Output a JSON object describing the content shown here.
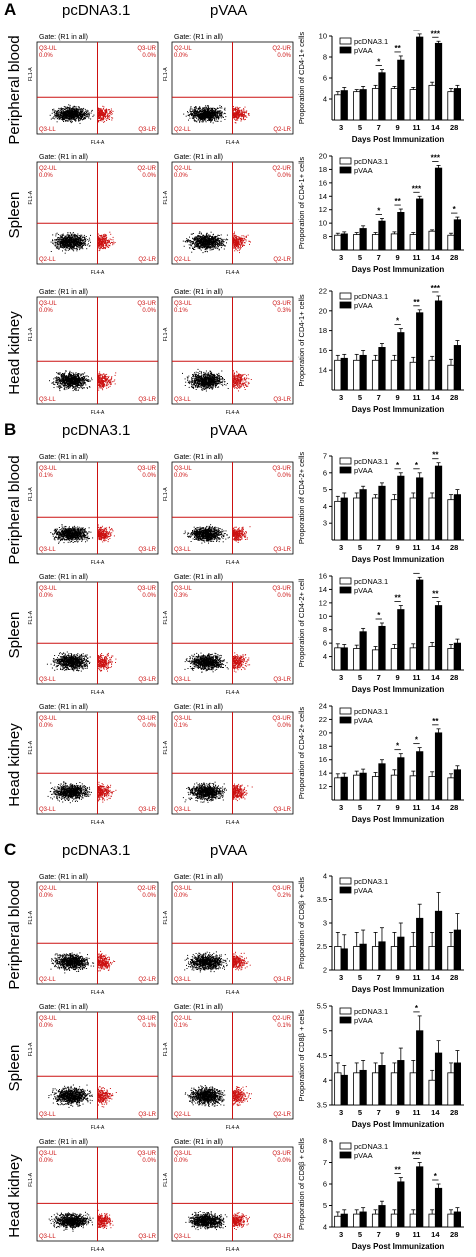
{
  "colors": {
    "gate_red": "#cc1111",
    "dots_black": "#000000",
    "bar_ctrl": "#ffffff",
    "bar_vaa": "#000000"
  },
  "panels": [
    {
      "label": "A",
      "headers": [
        "pcDNA3.1",
        "pVAA"
      ],
      "rows": [
        {
          "tissue": "Peripheral blood",
          "quads": [
            [
              "Q3-UL",
              "Q3-UR",
              "Q3-LL",
              "Q3-LR"
            ],
            [
              "Q2-UL",
              "Q2-UR",
              "Q2-LL",
              "Q2-LR"
            ]
          ],
          "ul_vals": [
            [
              "0.0%",
              "0.0%"
            ],
            [
              "0.0%",
              "0.0%"
            ]
          ]
        },
        {
          "tissue": "Spleen",
          "quads": [
            [
              "Q2-UL",
              "Q2-UR",
              "Q2-LL",
              "Q2-LR"
            ],
            [
              "Q2-UL",
              "Q2-UR",
              "Q2-LL",
              "Q2-LR"
            ]
          ],
          "ul_vals": [
            [
              "0.0%",
              "0.0%"
            ],
            [
              "0.0%",
              "0.0%"
            ]
          ]
        },
        {
          "tissue": "Head kidney",
          "quads": [
            [
              "Q3-UL",
              "Q3-UR",
              "Q3-LL",
              "Q3-LR"
            ],
            [
              "Q3-UL",
              "Q3-UR",
              "Q3-LL",
              "Q3-LR"
            ]
          ],
          "ul_vals": [
            [
              "0.0%",
              "0.0%"
            ],
            [
              "0.1%",
              "0.3%"
            ]
          ]
        }
      ]
    },
    {
      "label": "B",
      "headers": [
        "pcDNA3.1",
        "pVAA"
      ],
      "rows": [
        {
          "tissue": "Peripheral blood",
          "quads": [
            [
              "Q3-UL",
              "Q3-UR",
              "Q3-LL",
              "Q3-LR"
            ],
            [
              "Q3-UL",
              "Q3-UR",
              "Q3-LL",
              "Q3-LR"
            ]
          ],
          "ul_vals": [
            [
              "0.1%",
              "0.0%"
            ],
            [
              "0.0%",
              "0.0%"
            ]
          ]
        },
        {
          "tissue": "Spleen",
          "quads": [
            [
              "Q3-UL",
              "Q3-UR",
              "Q3-LL",
              "Q3-LR"
            ],
            [
              "Q3-UL",
              "Q3-UR",
              "Q3-LL",
              "Q3-LR"
            ]
          ],
          "ul_vals": [
            [
              "0.0%",
              "0.0%"
            ],
            [
              "0.3%",
              "0.0%"
            ]
          ]
        },
        {
          "tissue": "Head kidney",
          "quads": [
            [
              "Q3-UL",
              "Q3-UR",
              "Q3-LL",
              "Q3-LR"
            ],
            [
              "Q3-UL",
              "Q3-UR",
              "Q3-LL",
              "Q3-LR"
            ]
          ],
          "ul_vals": [
            [
              "0.0%",
              "0.0%"
            ],
            [
              "0.1%",
              "0.0%"
            ]
          ]
        }
      ]
    },
    {
      "label": "C",
      "headers": [
        "pcDNA3.1",
        "pVAA"
      ],
      "rows": [
        {
          "tissue": "Peripheral blood",
          "quads": [
            [
              "Q2-UL",
              "Q2-UR",
              "Q2-LL",
              "Q2-LR"
            ],
            [
              "Q3-UL",
              "Q3-UR",
              "Q3-LL",
              "Q3-LR"
            ]
          ],
          "ul_vals": [
            [
              "0.0%",
              "0.0%"
            ],
            [
              "0.0%",
              "0.2%"
            ]
          ]
        },
        {
          "tissue": "Spleen",
          "quads": [
            [
              "Q3-UL",
              "Q3-UR",
              "Q3-LL",
              "Q3-LR"
            ],
            [
              "Q2-UL",
              "Q2-UR",
              "Q2-LL",
              "Q2-LR"
            ]
          ],
          "ul_vals": [
            [
              "0.0%",
              "0.1%"
            ],
            [
              "0.1%",
              "0.1%"
            ]
          ]
        },
        {
          "tissue": "Head kidney",
          "quads": [
            [
              "Q3-UL",
              "Q3-UR",
              "Q3-LL",
              "Q3-LR"
            ],
            [
              "Q3-UL",
              "Q3-UR",
              "Q3-LL",
              "Q3-LR"
            ]
          ],
          "ul_vals": [
            [
              "0.0%",
              "0.0%"
            ],
            [
              "0.0%",
              "0.0%"
            ]
          ]
        }
      ]
    }
  ],
  "flow": {
    "gate": "Gate: (R1 in all)",
    "xaxis": "FL4-A",
    "yaxis": "FL1-A"
  },
  "chart_data": [
    {
      "type": "bar",
      "panel": "A",
      "tissue": "Peripheral blood",
      "ylabel": "Proporation of CD4-1+ cells",
      "xlabel": "Days Post Immunization",
      "categories": [
        "3",
        "5",
        "7",
        "9",
        "11",
        "14",
        "28"
      ],
      "ylim": [
        2,
        10
      ],
      "yticks": [
        4,
        6,
        8,
        10
      ],
      "series": [
        {
          "name": "pcDNA3.1",
          "values": [
            4.4,
            4.7,
            5.0,
            5.0,
            4.9,
            5.3,
            4.7
          ]
        },
        {
          "name": "pVAA",
          "values": [
            4.8,
            4.9,
            6.5,
            7.7,
            9.9,
            9.3,
            5.0
          ]
        }
      ],
      "errors": [
        [
          0.3,
          0.2,
          0.3,
          0.2,
          0.2,
          0.3,
          0.3
        ],
        [
          0.3,
          0.3,
          0.3,
          0.4,
          0.3,
          0.2,
          0.3
        ]
      ],
      "sig": [
        {
          "cat": 2,
          "label": "*"
        },
        {
          "cat": 3,
          "label": "**"
        },
        {
          "cat": 4,
          "label": "***"
        },
        {
          "cat": 5,
          "label": "***"
        }
      ]
    },
    {
      "type": "bar",
      "panel": "A",
      "tissue": "Spleen",
      "ylabel": "Proporation of CD4-1+ cells",
      "xlabel": "Days Post Immunization",
      "categories": [
        "3",
        "5",
        "7",
        "9",
        "11",
        "14",
        "28"
      ],
      "ylim": [
        6,
        20
      ],
      "yticks": [
        8,
        10,
        12,
        14,
        16,
        18,
        20
      ],
      "series": [
        {
          "name": "pcDNA3.1",
          "values": [
            8.2,
            8.3,
            8.3,
            8.4,
            8.3,
            8.8,
            8.2
          ]
        },
        {
          "name": "pVAA",
          "values": [
            8.4,
            9.2,
            10.3,
            11.6,
            13.6,
            18.2,
            10.5
          ]
        }
      ],
      "errors": [
        [
          0.3,
          0.3,
          0.3,
          0.3,
          0.3,
          0.2,
          0.3
        ],
        [
          0.3,
          0.4,
          0.4,
          0.5,
          0.4,
          0.4,
          0.4
        ]
      ],
      "sig": [
        {
          "cat": 2,
          "label": "*"
        },
        {
          "cat": 3,
          "label": "**"
        },
        {
          "cat": 4,
          "label": "***"
        },
        {
          "cat": 5,
          "label": "***"
        },
        {
          "cat": 6,
          "label": "*"
        }
      ]
    },
    {
      "type": "bar",
      "panel": "A",
      "tissue": "Head kidney",
      "ylabel": "Proporation of CD4-1+ cells",
      "xlabel": "Days Post Immunization",
      "categories": [
        "3",
        "5",
        "7",
        "9",
        "11",
        "14",
        "28"
      ],
      "ylim": [
        12,
        22
      ],
      "yticks": [
        14,
        16,
        18,
        20,
        22
      ],
      "series": [
        {
          "name": "pcDNA3.1",
          "values": [
            15.0,
            15.0,
            15.0,
            15.0,
            14.8,
            15.0,
            14.5
          ]
        },
        {
          "name": "pVAA",
          "values": [
            15.2,
            15.5,
            16.3,
            17.8,
            19.8,
            21.0,
            16.5
          ]
        }
      ],
      "errors": [
        [
          0.5,
          0.6,
          0.5,
          0.5,
          0.5,
          0.4,
          0.6
        ],
        [
          0.4,
          0.5,
          0.4,
          0.4,
          0.3,
          0.5,
          0.5
        ]
      ],
      "sig": [
        {
          "cat": 3,
          "label": "*"
        },
        {
          "cat": 4,
          "label": "**"
        },
        {
          "cat": 5,
          "label": "***"
        }
      ]
    },
    {
      "type": "bar",
      "panel": "B",
      "tissue": "Peripheral blood",
      "ylabel": "Proporation of CD4-2+ cells",
      "xlabel": "Days Post Immunization",
      "categories": [
        "3",
        "5",
        "7",
        "9",
        "11",
        "14",
        "28"
      ],
      "ylim": [
        2,
        7
      ],
      "yticks": [
        3,
        4,
        5,
        6,
        7
      ],
      "series": [
        {
          "name": "pcDNA3.1",
          "values": [
            4.3,
            4.5,
            4.5,
            4.4,
            4.5,
            4.5,
            4.4
          ]
        },
        {
          "name": "pVAA",
          "values": [
            4.5,
            5.0,
            5.2,
            5.8,
            5.7,
            6.4,
            4.7
          ]
        }
      ],
      "errors": [
        [
          0.3,
          0.3,
          0.2,
          0.3,
          0.3,
          0.3,
          0.3
        ],
        [
          0.3,
          0.2,
          0.2,
          0.2,
          0.3,
          0.2,
          0.3
        ]
      ],
      "sig": [
        {
          "cat": 3,
          "label": "*"
        },
        {
          "cat": 4,
          "label": "*"
        },
        {
          "cat": 5,
          "label": "**"
        }
      ]
    },
    {
      "type": "bar",
      "panel": "B",
      "tissue": "Spleen",
      "ylabel": "Proporation of CD4-2+ cell",
      "xlabel": "Days Post Immunization",
      "categories": [
        "3",
        "5",
        "7",
        "9",
        "11",
        "14",
        "28"
      ],
      "ylim": [
        2,
        16
      ],
      "yticks": [
        4,
        6,
        8,
        10,
        12,
        14,
        16
      ],
      "series": [
        {
          "name": "pcDNA3.1",
          "values": [
            5.3,
            5.2,
            5.0,
            5.2,
            5.3,
            5.5,
            5.2
          ]
        },
        {
          "name": "pVAA",
          "values": [
            5.3,
            7.7,
            8.5,
            11.0,
            15.4,
            11.6,
            6.0
          ]
        }
      ],
      "errors": [
        [
          0.6,
          0.5,
          0.5,
          0.6,
          0.6,
          0.6,
          0.6
        ],
        [
          0.5,
          0.5,
          0.5,
          0.6,
          0.4,
          0.6,
          0.6
        ]
      ],
      "sig": [
        {
          "cat": 2,
          "label": "*"
        },
        {
          "cat": 3,
          "label": "**"
        },
        {
          "cat": 4,
          "label": "***"
        },
        {
          "cat": 5,
          "label": "**"
        }
      ]
    },
    {
      "type": "bar",
      "panel": "B",
      "tissue": "Head kidney",
      "ylabel": "Proporation of CD4-2+ cells",
      "xlabel": "Days Post Immunization",
      "categories": [
        "3",
        "5",
        "7",
        "9",
        "11",
        "14",
        "28"
      ],
      "ylim": [
        10,
        24
      ],
      "yticks": [
        12,
        14,
        16,
        18,
        20,
        22,
        24
      ],
      "series": [
        {
          "name": "pcDNA3.1",
          "values": [
            13.3,
            13.7,
            13.5,
            13.7,
            13.6,
            13.5,
            13.3
          ]
        },
        {
          "name": "pVAA",
          "values": [
            13.4,
            14.0,
            15.4,
            16.3,
            17.2,
            20.0,
            14.5
          ]
        }
      ],
      "errors": [
        [
          0.6,
          0.6,
          0.6,
          0.8,
          0.7,
          0.7,
          0.6
        ],
        [
          0.6,
          0.6,
          0.6,
          0.6,
          0.6,
          0.6,
          0.6
        ]
      ],
      "sig": [
        {
          "cat": 3,
          "label": "*"
        },
        {
          "cat": 4,
          "label": "*"
        },
        {
          "cat": 5,
          "label": "**"
        }
      ]
    },
    {
      "type": "bar",
      "panel": "C",
      "tissue": "Peripheral blood",
      "ylabel": "Proporation of CD8β + cells",
      "xlabel": "Days Post Immunization",
      "categories": [
        "3",
        "5",
        "7",
        "9",
        "11",
        "14",
        "28"
      ],
      "ylim": [
        2.0,
        4.0
      ],
      "yticks": [
        2.0,
        2.5,
        3.0,
        3.5,
        4.0
      ],
      "series": [
        {
          "name": "pcDNA3.1",
          "values": [
            2.5,
            2.5,
            2.5,
            2.5,
            2.5,
            2.5,
            2.5
          ]
        },
        {
          "name": "pVAA",
          "values": [
            2.45,
            2.55,
            2.6,
            2.7,
            3.1,
            3.25,
            2.85
          ]
        }
      ],
      "errors": [
        [
          0.3,
          0.3,
          0.3,
          0.3,
          0.3,
          0.3,
          0.3
        ],
        [
          0.3,
          0.3,
          0.3,
          0.3,
          0.3,
          0.4,
          0.35
        ]
      ],
      "sig": []
    },
    {
      "type": "bar",
      "panel": "C",
      "tissue": "Spleen",
      "ylabel": "Proporation of CD8β + cells",
      "xlabel": "Days Post Immunization",
      "categories": [
        "3",
        "5",
        "7",
        "9",
        "11",
        "14",
        "28"
      ],
      "ylim": [
        3.5,
        5.5
      ],
      "yticks": [
        3.5,
        4.0,
        4.5,
        5.0,
        5.5
      ],
      "series": [
        {
          "name": "pcDNA3.1",
          "values": [
            4.15,
            4.15,
            4.15,
            4.15,
            4.15,
            4.0,
            4.15
          ]
        },
        {
          "name": "pVAA",
          "values": [
            4.1,
            4.2,
            4.3,
            4.4,
            5.0,
            4.55,
            4.35
          ]
        }
      ],
      "errors": [
        [
          0.2,
          0.2,
          0.2,
          0.2,
          0.25,
          0.2,
          0.2
        ],
        [
          0.2,
          0.2,
          0.25,
          0.25,
          0.3,
          0.25,
          0.25
        ]
      ],
      "sig": [
        {
          "cat": 4,
          "label": "*"
        }
      ]
    },
    {
      "type": "bar",
      "panel": "C",
      "tissue": "Head kidney",
      "ylabel": "Proporation of CD8β + cells",
      "xlabel": "Days Post Immunization",
      "categories": [
        "3",
        "5",
        "7",
        "9",
        "11",
        "14",
        "28"
      ],
      "ylim": [
        4,
        8
      ],
      "yticks": [
        4,
        5,
        6,
        7,
        8
      ],
      "series": [
        {
          "name": "pcDNA3.1",
          "values": [
            4.5,
            4.6,
            4.6,
            4.6,
            4.6,
            4.6,
            4.6
          ]
        },
        {
          "name": "pVAA",
          "values": [
            4.6,
            4.7,
            5.0,
            6.1,
            6.8,
            5.8,
            4.7
          ]
        }
      ],
      "errors": [
        [
          0.2,
          0.2,
          0.2,
          0.2,
          0.2,
          0.2,
          0.2
        ],
        [
          0.2,
          0.2,
          0.2,
          0.2,
          0.2,
          0.2,
          0.2
        ]
      ],
      "sig": [
        {
          "cat": 3,
          "label": "**"
        },
        {
          "cat": 4,
          "label": "***"
        },
        {
          "cat": 5,
          "label": "*"
        }
      ]
    }
  ]
}
